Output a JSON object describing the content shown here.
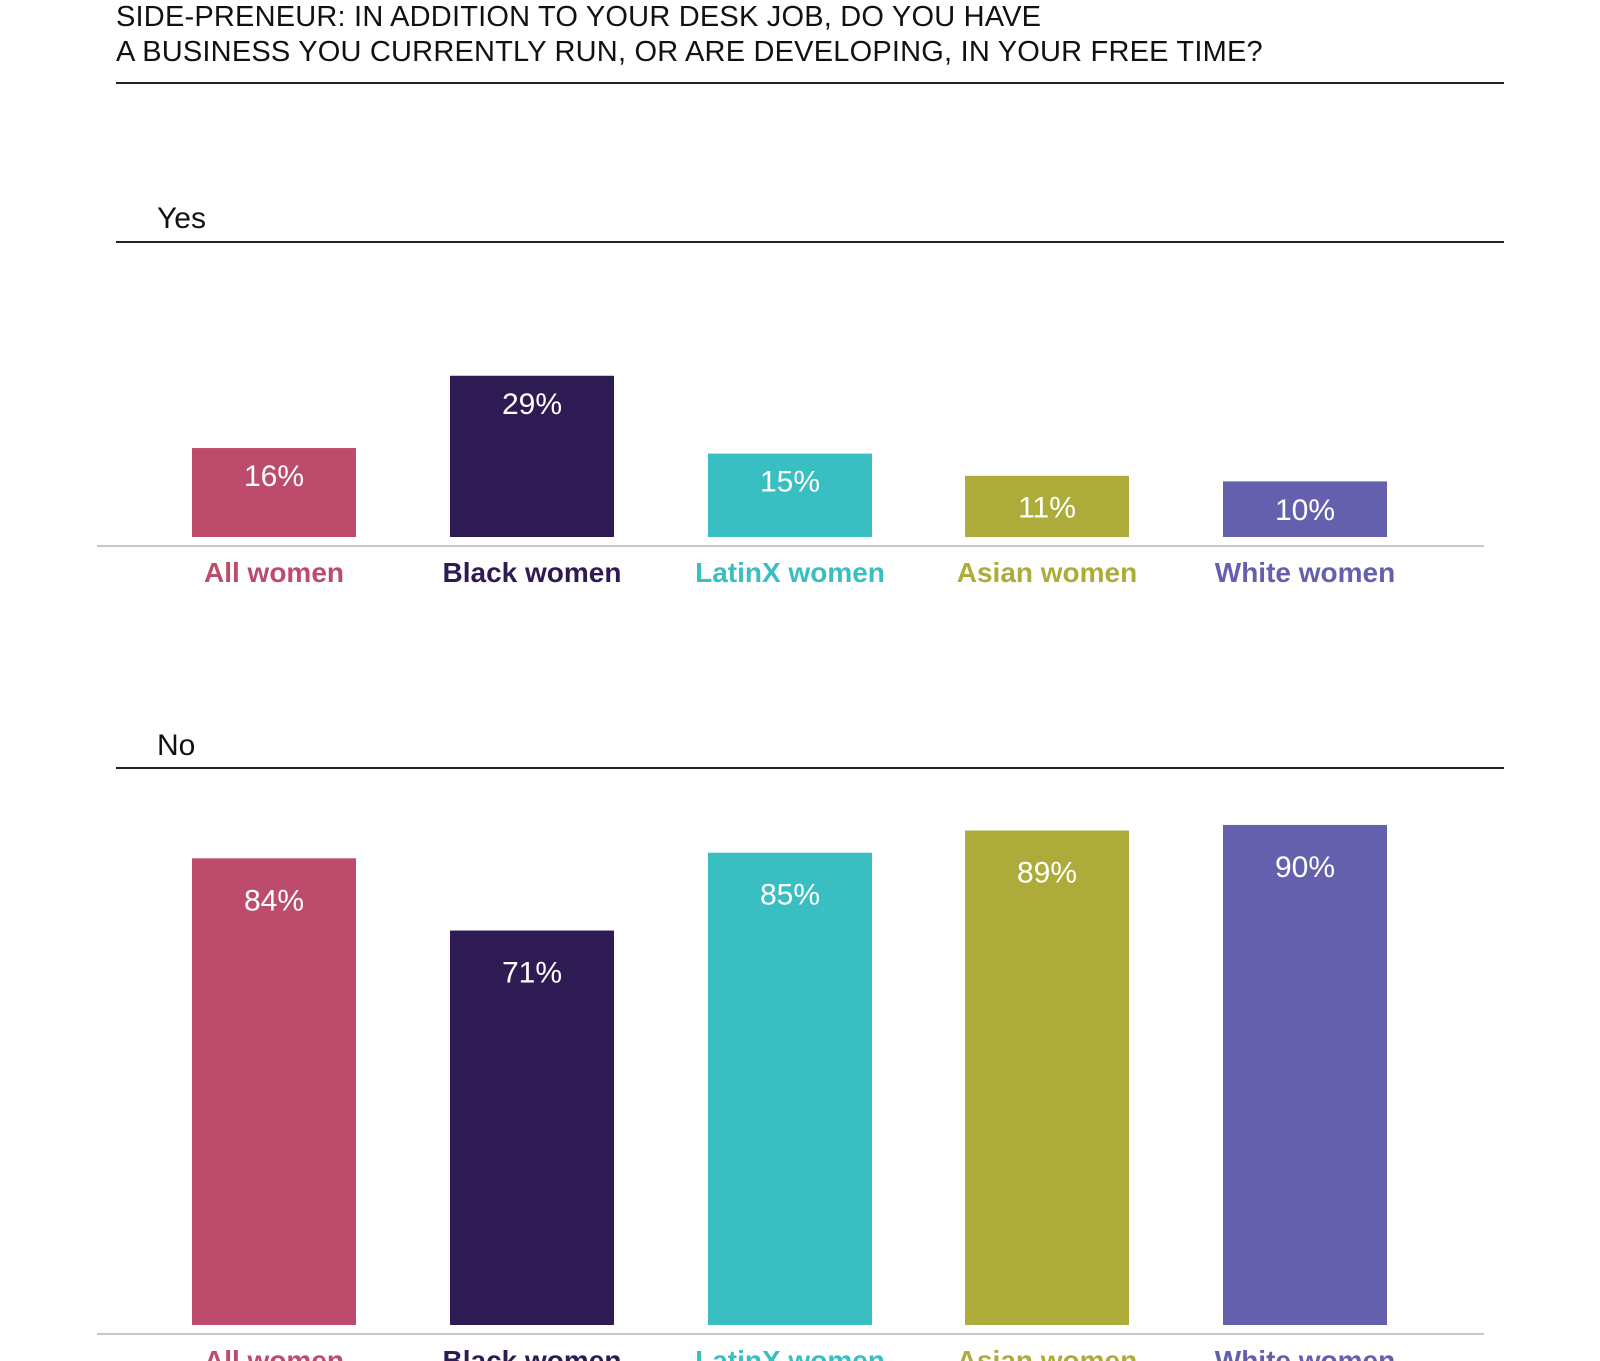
{
  "title": {
    "line1": "SIDE-PRENEUR: IN ADDITION TO YOUR DESK JOB, DO YOU HAVE",
    "line2": "A BUSINESS YOU CURRENTLY RUN, OR ARE DEVELOPING, IN YOUR FREE TIME?"
  },
  "colors": {
    "All women": "#bd4b6c",
    "Black women": "#2f1b54",
    "LatinX women": "#39bec1",
    "Asian women": "#adac3a",
    "White women": "#6460ad"
  },
  "chart_data": [
    {
      "type": "bar",
      "title": "Yes",
      "categories": [
        "All women",
        "Black women",
        "LatinX women",
        "Asian women",
        "White women"
      ],
      "values": [
        16,
        29,
        15,
        11,
        10
      ],
      "value_labels": [
        "16%",
        "29%",
        "15%",
        "11%",
        "10%"
      ],
      "ylim": [
        0,
        100
      ],
      "grid": false,
      "legend": "none"
    },
    {
      "type": "bar",
      "title": "No",
      "categories": [
        "All women",
        "Black women",
        "LatinX women",
        "Asian women",
        "White women"
      ],
      "values": [
        84,
        71,
        85,
        89,
        90
      ],
      "value_labels": [
        "84%",
        "71%",
        "85%",
        "89%",
        "90%"
      ],
      "ylim": [
        0,
        100
      ],
      "grid": false,
      "legend": "none"
    }
  ]
}
